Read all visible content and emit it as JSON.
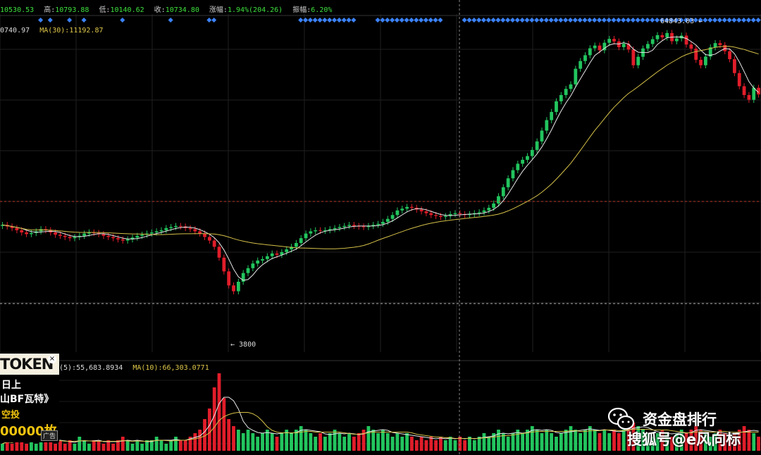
{
  "header": {
    "open": "10530.53",
    "high_label": "高:",
    "high": "10793.88",
    "low_label": "低:",
    "low": "10140.62",
    "close_label": "收:",
    "close": "10734.80",
    "change_label": "涨幅:",
    "change": "1.94%(204.26)",
    "amp_label": "振幅:",
    "amp": "6.20%"
  },
  "ma_price": {
    "ma_left": "0740.97",
    "ma30": "MA(30):11192.87"
  },
  "ma_volume": {
    "ma5": "(5):55,683.8934",
    "ma10": "MA(10):66,303.0771"
  },
  "annotations": {
    "peak": "64843.03",
    "low": "3800"
  },
  "ad": {
    "brand": "TOKEN",
    "close": "×",
    "line2": "日上",
    "line3": "山BF瓦特》",
    "line4": "空投",
    "line5": "00000枚",
    "tag": "广告"
  },
  "watermark": {
    "line1": "资金盘排行",
    "line2": "搜狐号@e风向标"
  },
  "colors": {
    "up": "#22c55e",
    "down": "#e11d2a",
    "ma_fast": "#e8e8e8",
    "ma_slow": "#d4c048",
    "marker": "#3b82f6"
  },
  "chart_data": {
    "type": "candlestick",
    "series": [
      {
        "name": "price_close",
        "values": [
          9800,
          9650,
          9500,
          9300,
          9100,
          8950,
          9050,
          9200,
          9400,
          9300,
          9100,
          8900,
          8800,
          8700,
          8600,
          8700,
          8800,
          9000,
          9100,
          9050,
          8950,
          8800,
          8700,
          8600,
          8500,
          8400,
          8500,
          8650,
          8800,
          8900,
          9000,
          9100,
          9200,
          9300,
          9500,
          9600,
          9700,
          9650,
          9500,
          9400,
          9200,
          9000,
          8700,
          8400,
          7900,
          7100,
          6200,
          5400,
          5100,
          5600,
          6100,
          6400,
          6700,
          6900,
          7000,
          7200,
          7400,
          7300,
          7500,
          7700,
          7900,
          8200,
          8600,
          9000,
          9200,
          9300,
          9250,
          9300,
          9400,
          9500,
          9600,
          9700,
          9800,
          9700,
          9650,
          9600,
          9700,
          9800,
          9900,
          10100,
          10400,
          10800,
          11300,
          11500,
          11700,
          11600,
          11400,
          11200,
          11000,
          10800,
          10700,
          10600,
          10700,
          10900,
          11000,
          10900,
          10800,
          10900,
          11000,
          11100,
          11300,
          11600,
          12100,
          13000,
          14200,
          15500,
          16800,
          17900,
          18600,
          19300,
          20500,
          22300,
          24800,
          27500,
          29800,
          33100,
          35200,
          37400,
          39100,
          45600,
          49200,
          52100,
          55800,
          57300,
          54700,
          58900,
          61200,
          59700,
          56400,
          58300,
          55100,
          47200,
          51300,
          55700,
          58200,
          61000,
          63500,
          62100,
          64843,
          59800,
          61500,
          63200,
          57900,
          55600,
          49800,
          47200,
          51400,
          56300,
          58700,
          57600,
          54200,
          50100,
          43700,
          38400,
          35200,
          33600,
          37800,
          35400
        ]
      }
    ],
    "volume": [
      2,
      3,
      2,
      4,
      3,
      2,
      3,
      2,
      3,
      4,
      3,
      2,
      3,
      2,
      3,
      2,
      4,
      3,
      2,
      3,
      3,
      2,
      3,
      2,
      3,
      4,
      3,
      2,
      3,
      2,
      3,
      3,
      4,
      3,
      2,
      3,
      4,
      3,
      3,
      4,
      5,
      6,
      9,
      12,
      18,
      22,
      15,
      9,
      7,
      6,
      5,
      6,
      5,
      4,
      5,
      6,
      5,
      4,
      5,
      6,
      5,
      6,
      7,
      6,
      5,
      4,
      5,
      4,
      5,
      6,
      5,
      4,
      5,
      4,
      5,
      6,
      7,
      6,
      5,
      6,
      5,
      4,
      5,
      4,
      5,
      4,
      3,
      4,
      3,
      4,
      3,
      4,
      3,
      4,
      3,
      4,
      3,
      4,
      3,
      4,
      5,
      4,
      5,
      6,
      5,
      4,
      5,
      6,
      5,
      6,
      7,
      6,
      5,
      6,
      5,
      4,
      5,
      6,
      7,
      6,
      5,
      6,
      7,
      6,
      5,
      6,
      5,
      6,
      5,
      6,
      7,
      8,
      7,
      6,
      5,
      4,
      5,
      6,
      5,
      4,
      5,
      6,
      5,
      6,
      7,
      6,
      5,
      4,
      5,
      6,
      5,
      4,
      5,
      6,
      7,
      6,
      5,
      4
    ],
    "ylim": [
      0,
      70000
    ]
  }
}
